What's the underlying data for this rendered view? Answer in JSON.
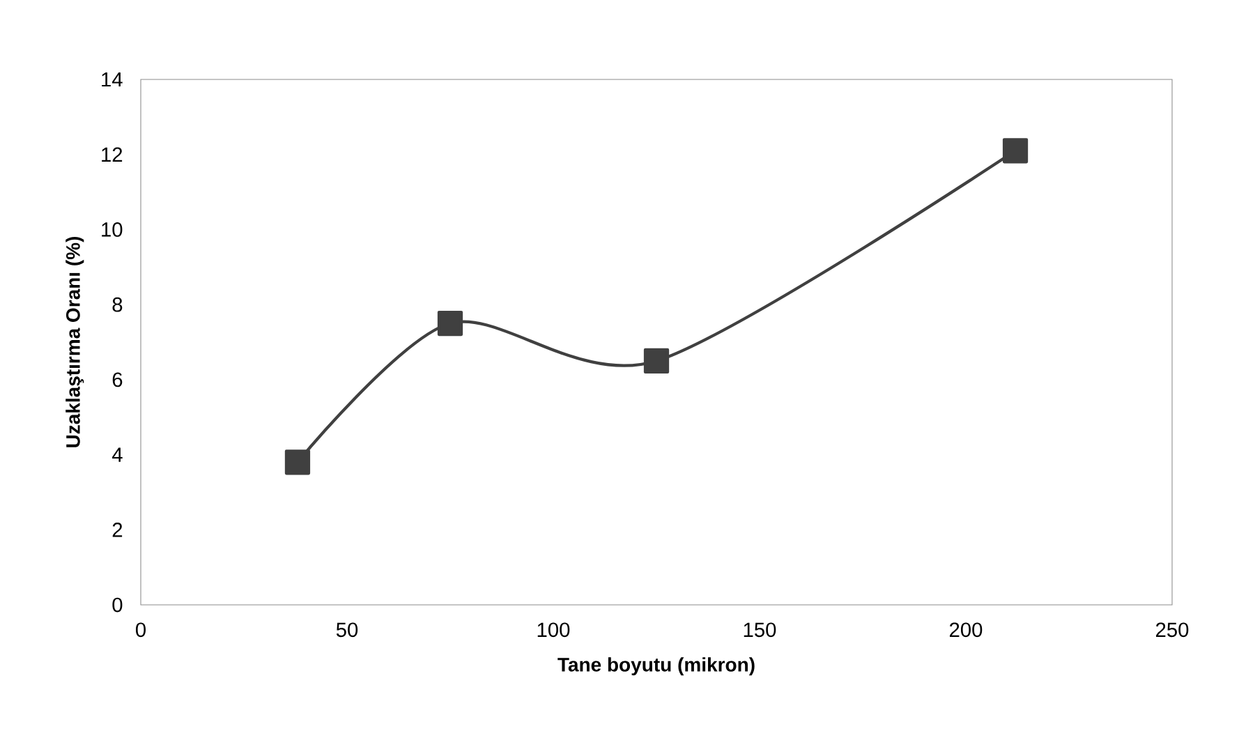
{
  "chart_data": {
    "type": "line",
    "xlabel": "Tane boyutu (mikron)",
    "ylabel": "Uzaklaştırma Oranı (%)",
    "x": [
      38,
      75,
      125,
      212
    ],
    "series": [
      {
        "color": "#404040",
        "values": [
          3.8,
          7.5,
          6.5,
          12.1
        ]
      }
    ],
    "xlim": [
      0,
      250
    ],
    "xticks": [
      0,
      50,
      100,
      150,
      200,
      250
    ],
    "ylim": [
      0,
      14
    ],
    "yticks": [
      0,
      2,
      4,
      6,
      8,
      10,
      12,
      14
    ],
    "grid": false,
    "marker": "square",
    "line_style": "solid"
  }
}
